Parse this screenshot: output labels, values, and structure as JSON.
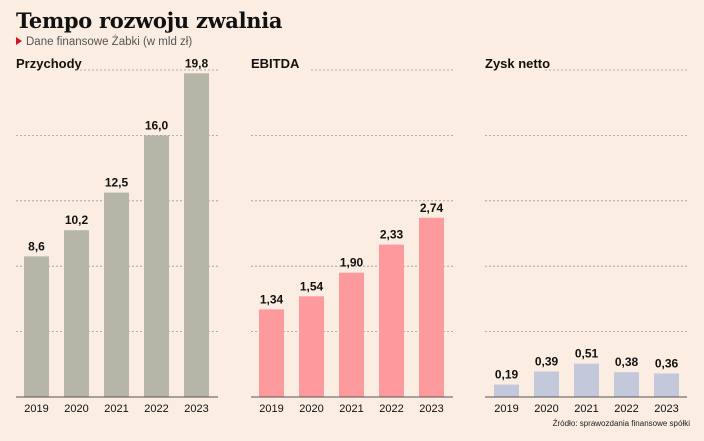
{
  "title": "Tempo rozwoju zwalnia",
  "subtitle": "Dane finansowe Żabki (w mld zł)",
  "source": "Źródło: sprawozdania finansowe spółki",
  "colors": {
    "background": "#fbede1",
    "grid": "#9a9a9a",
    "subtitle_marker": "#d0122b"
  },
  "chart_data": [
    {
      "type": "bar",
      "title": "Przychody",
      "categories": [
        "2019",
        "2020",
        "2021",
        "2022",
        "2023"
      ],
      "values": [
        8.6,
        10.2,
        12.5,
        16.0,
        19.8
      ],
      "labels": [
        "8,6",
        "10,2",
        "12,5",
        "16,0",
        "19,8"
      ],
      "ylim": [
        0,
        20
      ],
      "grid": true,
      "color": "#b5b5a8"
    },
    {
      "type": "bar",
      "title": "EBITDA",
      "categories": [
        "2019",
        "2020",
        "2021",
        "2022",
        "2023"
      ],
      "values": [
        1.34,
        1.54,
        1.9,
        2.33,
        2.74
      ],
      "labels": [
        "1,34",
        "1,54",
        "1,90",
        "2,33",
        "2,74"
      ],
      "ylim": [
        0,
        5
      ],
      "grid": true,
      "color": "#fd9a9d"
    },
    {
      "type": "bar",
      "title": "Zysk netto",
      "categories": [
        "2019",
        "2020",
        "2021",
        "2022",
        "2023"
      ],
      "values": [
        0.19,
        0.39,
        0.51,
        0.38,
        0.36
      ],
      "labels": [
        "0,19",
        "0,39",
        "0,51",
        "0,38",
        "0,36"
      ],
      "ylim": [
        0,
        5
      ],
      "grid": true,
      "color": "#c3c8da"
    }
  ]
}
